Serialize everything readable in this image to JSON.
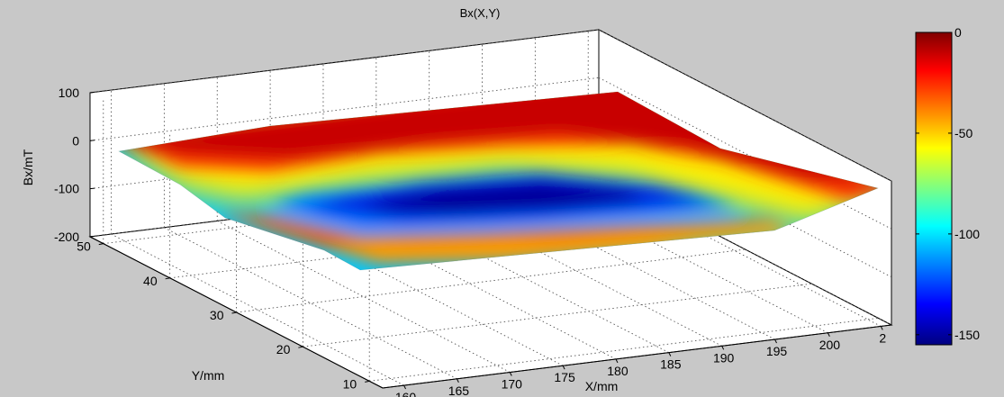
{
  "chart_data": {
    "type": "surface",
    "title": "Bx(X,Y)",
    "xlabel": "X/mm",
    "ylabel": "Y/mm",
    "zlabel": "Bx/mT",
    "x_ticks": [
      "160",
      "165",
      "170",
      "175",
      "180",
      "185",
      "190",
      "195",
      "200",
      "2"
    ],
    "y_ticks": [
      "10",
      "20",
      "30",
      "40",
      "50"
    ],
    "z_ticks": [
      "100",
      "0",
      "-100",
      "-200"
    ],
    "xlim": [
      158,
      206
    ],
    "ylim": [
      8,
      52
    ],
    "zlim": [
      -200,
      100
    ],
    "colorbar": {
      "ticks": [
        "0",
        "-50",
        "-100",
        "-150"
      ],
      "clim": [
        -155,
        0
      ],
      "colormap": "jet"
    },
    "surface_samples": [
      {
        "x": 160,
        "y": 52,
        "z": -20
      },
      {
        "x": 206,
        "y": 52,
        "z": 0
      },
      {
        "x": 206,
        "y": 8,
        "z": -25
      },
      {
        "x": 160,
        "y": 8,
        "z": -25
      },
      {
        "x": 183,
        "y": 30,
        "z": -150
      }
    ],
    "grid": true
  }
}
